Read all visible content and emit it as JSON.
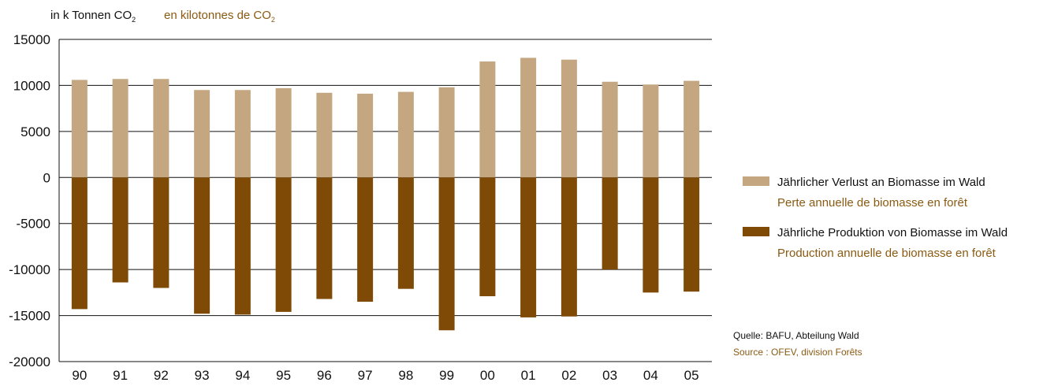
{
  "unit_label": {
    "de_prefix": "in k Tonnen CO",
    "de_subscript": "2",
    "fr_prefix": "en kilotonnes de CO",
    "fr_subscript": "2"
  },
  "legend": {
    "loss": {
      "de": "Jährlicher Verlust an Biomasse im Wald",
      "fr": "Perte annuelle de biomasse en forêt",
      "color": "#c4a781"
    },
    "production": {
      "de": "Jährliche Produktion von Biomasse im Wald",
      "fr": "Production annuelle de biomasse en forêt",
      "color": "#7f4a05"
    }
  },
  "source": {
    "de": "Quelle: BAFU, Abteilung Wald",
    "fr": "Source : OFEV, division Forêts"
  },
  "chart_data": {
    "type": "bar",
    "stacked": true,
    "categories": [
      "90",
      "91",
      "92",
      "93",
      "94",
      "95",
      "96",
      "97",
      "98",
      "99",
      "00",
      "01",
      "02",
      "03",
      "04",
      "05"
    ],
    "series": [
      {
        "name": "Jährlicher Verlust an Biomasse im Wald",
        "values": [
          10600,
          10700,
          10700,
          9500,
          9500,
          9700,
          9200,
          9100,
          9300,
          9800,
          12600,
          13000,
          12800,
          10400,
          10100,
          10500
        ]
      },
      {
        "name": "Jährliche Produktion von Biomasse im Wald",
        "values": [
          -14300,
          -11400,
          -12000,
          -14800,
          -14900,
          -14600,
          -13200,
          -13500,
          -12100,
          -16600,
          -12900,
          -15200,
          -15100,
          -10000,
          -12500,
          -12400
        ]
      }
    ],
    "yticks": [
      "15000",
      "10000",
      "5000",
      "0",
      "-5000",
      "-10000",
      "-15000",
      "-20000"
    ],
    "ylim": [
      -20000,
      15000
    ],
    "grid": true,
    "legend_position": "right"
  }
}
